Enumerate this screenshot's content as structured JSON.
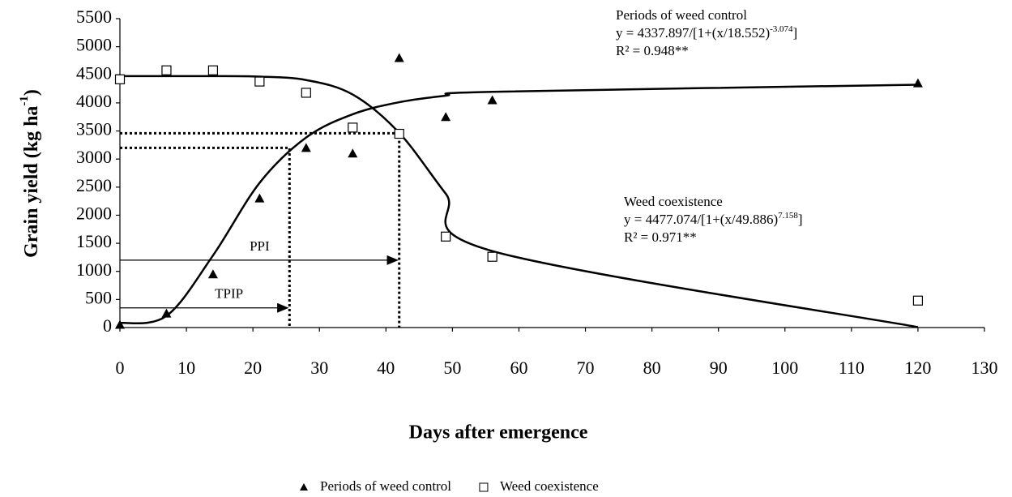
{
  "chart_data": {
    "type": "scatter",
    "ylabel": {
      "text": "Grain yield (kg ha",
      "exponent": "-1",
      "suffix": ")"
    },
    "xlabel": "Days after emergence",
    "xlim": [
      0,
      130
    ],
    "xticks": [
      0,
      10,
      20,
      30,
      40,
      50,
      60,
      70,
      80,
      90,
      100,
      110,
      120,
      130
    ],
    "ylim": [
      0,
      5500
    ],
    "yticks": [
      0,
      500,
      1000,
      1500,
      2000,
      2500,
      3000,
      3500,
      4000,
      4500,
      5000,
      5500
    ],
    "series": [
      {
        "name": "Periods of weed control",
        "marker": "triangle",
        "color": "#000000",
        "x": [
          0,
          7,
          14,
          21,
          28,
          35,
          42,
          49,
          56,
          120
        ],
        "values": [
          50,
          250,
          950,
          2300,
          3200,
          3100,
          4800,
          3750,
          4050,
          4350
        ],
        "fit_values": [
          80,
          207,
          1284,
          2576,
          3383,
          3798,
          4012,
          4129,
          4197,
          4324
        ],
        "equation": {
          "title": "Periods of weed control",
          "text": "y = 4337.897/[1+(x/18.552)",
          "exponent": "-3.074",
          "suffix": "]",
          "r2": "R² = 0.948**"
        }
      },
      {
        "name": "Weed coexistence",
        "marker": "square",
        "color": "#000000",
        "x": [
          0,
          7,
          14,
          21,
          28,
          35,
          42,
          49,
          56,
          120
        ],
        "values": [
          4420,
          4580,
          4580,
          4380,
          4180,
          3560,
          3450,
          1620,
          1260,
          480
        ],
        "fit_values": [
          4477,
          4477,
          4477,
          4468,
          4407,
          4149,
          3466,
          2383,
          1362,
          8
        ],
        "equation": {
          "title": "Weed coexistence",
          "text": "y = 4477.074/[1+(x/49.886)",
          "exponent": "7.158",
          "suffix": "]",
          "r2": "R² = 0.971**"
        }
      }
    ],
    "critical_points": [
      {
        "label": "TPIP",
        "x": 25.5,
        "y": 3200,
        "arrow_y": 350
      },
      {
        "label": "PPI",
        "x": 42,
        "y": 3460,
        "arrow_y": 1200
      }
    ]
  }
}
